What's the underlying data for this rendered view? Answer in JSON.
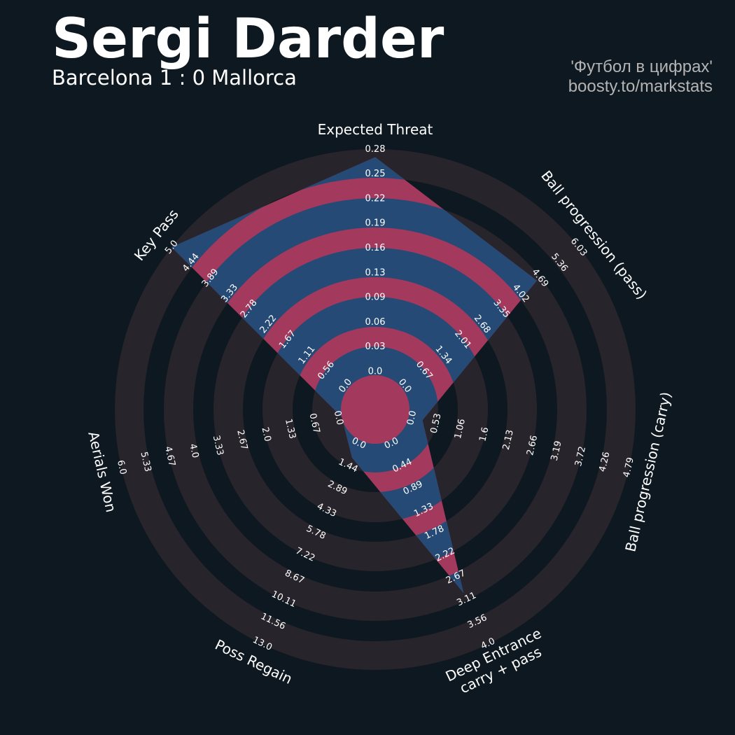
{
  "header": {
    "title": "Sergi Darder",
    "subtitle": "Barcelona 1 : 0 Mallorca",
    "credit_line1": "'Футбол в цифрах'",
    "credit_line2": "boosty.to/markstats"
  },
  "colors": {
    "background": "#0e1820",
    "ring": "#28242b",
    "center_circle": "#a33a5e",
    "player_fill_ring": "#254a75",
    "player_fill_gap": "#a33a5e",
    "text": "#ffffff"
  },
  "chart_data": {
    "type": "radar",
    "params": [
      {
        "label": "Expected Threat",
        "ticks": [
          "0.0",
          "0.03",
          "0.06",
          "0.09",
          "0.13",
          "0.16",
          "0.19",
          "0.22",
          "0.25",
          "0.28"
        ],
        "min": 0,
        "max": 0.28,
        "value": 0.27
      },
      {
        "label": "Ball progression (pass)",
        "ticks": [
          "0.0",
          "0.67",
          "1.34",
          "2.01",
          "2.68",
          "3.35",
          "4.02",
          "4.69",
          "5.36",
          "6.03"
        ],
        "min": 0,
        "max": 6.03,
        "value": 4.6
      },
      {
        "label": "Ball progression (carry)",
        "ticks": [
          "0.0",
          "0.53",
          "1.06",
          "1.6",
          "2.13",
          "2.66",
          "3.19",
          "3.72",
          "4.26",
          "4.79"
        ],
        "min": 0,
        "max": 4.79,
        "value": 0.3
      },
      {
        "label": "Deep Entrance\ncarry + pass",
        "ticks": [
          "0.0",
          "0.44",
          "0.89",
          "1.33",
          "1.78",
          "2.22",
          "2.67",
          "3.11",
          "3.56",
          "4.0"
        ],
        "min": 0,
        "max": 4.0,
        "value": 3.0
      },
      {
        "label": "Poss Regain",
        "ticks": [
          "0.0",
          "1.44",
          "2.89",
          "4.33",
          "5.78",
          "7.22",
          "8.67",
          "10.11",
          "11.56",
          "13.0"
        ],
        "min": 0,
        "max": 13.0,
        "value": 1.1
      },
      {
        "label": "Aerials Won",
        "ticks": [
          "0.0",
          "0.67",
          "1.33",
          "2.0",
          "2.67",
          "3.33",
          "4.0",
          "4.67",
          "5.33",
          "6.0"
        ],
        "min": 0,
        "max": 6.0,
        "value": 0
      },
      {
        "label": "Key Pass",
        "ticks": [
          "0.0",
          "0.56",
          "1.11",
          "1.67",
          "2.22",
          "2.78",
          "3.33",
          "3.89",
          "4.44",
          "5.0"
        ],
        "min": 0,
        "max": 5.0,
        "value": 5.0
      }
    ]
  }
}
